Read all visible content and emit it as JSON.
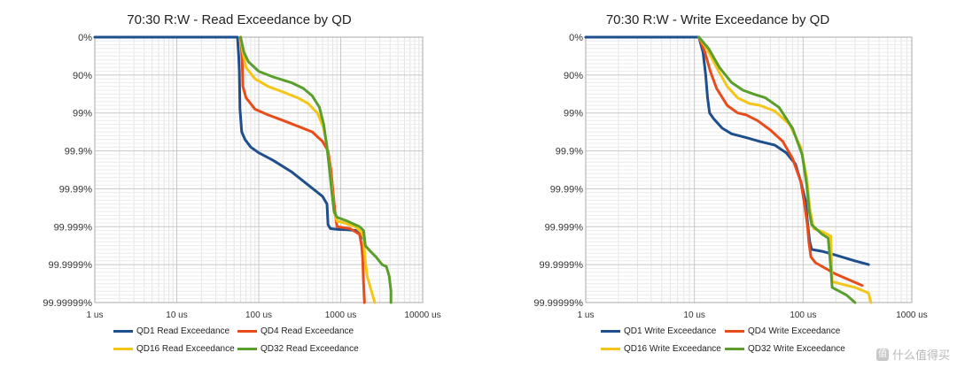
{
  "chart_data": [
    {
      "type": "line",
      "title": "70:30 R:W - Read Exceedance by QD",
      "x_axis": {
        "scale": "log",
        "ticks": [
          "1 us",
          "10 us",
          "100 us",
          "1000 us",
          "10000 us"
        ],
        "range_us": [
          1,
          10000
        ]
      },
      "y_axis": {
        "scale": "exceedance-log",
        "ticks": [
          "0%",
          "90%",
          "99%",
          "99.9%",
          "99.99%",
          "99.999%",
          "99.9999%",
          "99.99999%"
        ]
      },
      "grid": true,
      "legend_position": "bottom",
      "series": [
        {
          "name": "QD1 Read Exceedance",
          "color": "#1f4e8c",
          "points": [
            [
              1,
              0
            ],
            [
              55,
              0
            ],
            [
              57,
              0.5
            ],
            [
              58,
              0.9
            ],
            [
              59,
              1.9
            ],
            [
              62,
              2.5
            ],
            [
              68,
              2.7
            ],
            [
              80,
              2.9
            ],
            [
              100,
              3.05
            ],
            [
              150,
              3.25
            ],
            [
              250,
              3.55
            ],
            [
              400,
              3.9
            ],
            [
              600,
              4.2
            ],
            [
              680,
              4.4
            ],
            [
              700,
              4.95
            ],
            [
              750,
              5.05
            ],
            [
              900,
              5.07
            ],
            [
              1200,
              5.08
            ],
            [
              1600,
              5.1
            ],
            [
              1800,
              5.3
            ]
          ]
        },
        {
          "name": "QD4 Read Exceedance",
          "color": "#e84c1a",
          "points": [
            [
              60,
              0
            ],
            [
              62,
              0.4
            ],
            [
              63,
              0.7
            ],
            [
              64,
              1.3
            ],
            [
              70,
              1.6
            ],
            [
              90,
              1.9
            ],
            [
              130,
              2.05
            ],
            [
              200,
              2.2
            ],
            [
              300,
              2.35
            ],
            [
              450,
              2.5
            ],
            [
              600,
              2.75
            ],
            [
              700,
              3.0
            ],
            [
              760,
              3.5
            ],
            [
              800,
              4.0
            ],
            [
              850,
              4.6
            ],
            [
              900,
              5.0
            ],
            [
              1300,
              5.05
            ],
            [
              1700,
              5.2
            ],
            [
              1800,
              5.5
            ],
            [
              1850,
              5.8
            ],
            [
              1900,
              6.5
            ],
            [
              1950,
              7.0
            ]
          ]
        },
        {
          "name": "QD16 Read Exceedance",
          "color": "#f5c518",
          "points": [
            [
              60,
              0
            ],
            [
              64,
              0.4
            ],
            [
              70,
              0.8
            ],
            [
              90,
              1.1
            ],
            [
              130,
              1.3
            ],
            [
              200,
              1.45
            ],
            [
              300,
              1.6
            ],
            [
              400,
              1.75
            ],
            [
              520,
              2.0
            ],
            [
              620,
              2.4
            ],
            [
              680,
              2.9
            ],
            [
              730,
              3.4
            ],
            [
              780,
              4.0
            ],
            [
              830,
              4.6
            ],
            [
              900,
              4.85
            ],
            [
              1100,
              4.9
            ],
            [
              1500,
              5.0
            ],
            [
              1800,
              5.15
            ],
            [
              1900,
              5.3
            ],
            [
              2000,
              5.9
            ],
            [
              2100,
              6.3
            ],
            [
              2300,
              6.6
            ],
            [
              2600,
              7.0
            ]
          ]
        },
        {
          "name": "QD32 Read Exceedance",
          "color": "#5a9e2c",
          "points": [
            [
              60,
              0
            ],
            [
              66,
              0.4
            ],
            [
              75,
              0.65
            ],
            [
              100,
              0.9
            ],
            [
              150,
              1.05
            ],
            [
              250,
              1.2
            ],
            [
              350,
              1.35
            ],
            [
              450,
              1.55
            ],
            [
              550,
              1.85
            ],
            [
              620,
              2.3
            ],
            [
              680,
              2.9
            ],
            [
              730,
              3.5
            ],
            [
              780,
              4.1
            ],
            [
              830,
              4.6
            ],
            [
              900,
              4.75
            ],
            [
              1200,
              4.85
            ],
            [
              1700,
              5.0
            ],
            [
              1900,
              5.1
            ],
            [
              2000,
              5.5
            ],
            [
              2300,
              5.65
            ],
            [
              2700,
              5.8
            ],
            [
              3200,
              6.0
            ],
            [
              3600,
              6.05
            ],
            [
              3900,
              6.3
            ],
            [
              4100,
              6.7
            ],
            [
              4100,
              7.0
            ]
          ]
        }
      ]
    },
    {
      "type": "line",
      "title": "70:30 R:W - Write Exceedance by QD",
      "x_axis": {
        "scale": "log",
        "ticks": [
          "1 us",
          "10 us",
          "100 us",
          "1000 us"
        ],
        "range_us": [
          1,
          1000
        ]
      },
      "y_axis": {
        "scale": "exceedance-log",
        "ticks": [
          "0%",
          "90%",
          "99%",
          "99.9%",
          "99.99%",
          "99.999%",
          "99.9999%",
          "99.99999%"
        ]
      },
      "grid": true,
      "legend_position": "bottom",
      "series": [
        {
          "name": "QD1 Write Exceedance",
          "color": "#1f4e8c",
          "points": [
            [
              1,
              0
            ],
            [
              11,
              0
            ],
            [
              12,
              0.4
            ],
            [
              12.7,
              1.0
            ],
            [
              13.2,
              1.6
            ],
            [
              13.8,
              2.0
            ],
            [
              15,
              2.15
            ],
            [
              18,
              2.4
            ],
            [
              22,
              2.55
            ],
            [
              30,
              2.65
            ],
            [
              40,
              2.75
            ],
            [
              55,
              2.85
            ],
            [
              70,
              3.05
            ],
            [
              85,
              3.35
            ],
            [
              95,
              3.8
            ],
            [
              105,
              4.3
            ],
            [
              110,
              4.9
            ],
            [
              115,
              5.4
            ],
            [
              120,
              5.6
            ],
            [
              150,
              5.65
            ],
            [
              200,
              5.75
            ],
            [
              300,
              5.9
            ],
            [
              400,
              6.0
            ]
          ]
        },
        {
          "name": "QD4 Write Exceedance",
          "color": "#e84c1a",
          "points": [
            [
              11,
              0
            ],
            [
              12.5,
              0.4
            ],
            [
              14,
              0.9
            ],
            [
              16,
              1.35
            ],
            [
              20,
              1.8
            ],
            [
              25,
              2.0
            ],
            [
              30,
              2.05
            ],
            [
              38,
              2.2
            ],
            [
              50,
              2.45
            ],
            [
              65,
              2.75
            ],
            [
              80,
              3.2
            ],
            [
              95,
              3.8
            ],
            [
              103,
              4.4
            ],
            [
              110,
              5.0
            ],
            [
              113,
              5.4
            ],
            [
              118,
              5.8
            ],
            [
              130,
              5.95
            ],
            [
              200,
              6.25
            ],
            [
              350,
              6.55
            ]
          ]
        },
        {
          "name": "QD16 Write Exceedance",
          "color": "#f5c518",
          "points": [
            [
              11,
              0
            ],
            [
              13,
              0.3
            ],
            [
              16,
              0.8
            ],
            [
              20,
              1.3
            ],
            [
              25,
              1.6
            ],
            [
              32,
              1.75
            ],
            [
              40,
              1.8
            ],
            [
              55,
              1.95
            ],
            [
              75,
              2.3
            ],
            [
              95,
              2.9
            ],
            [
              108,
              3.7
            ],
            [
              115,
              4.5
            ],
            [
              125,
              5.05
            ],
            [
              155,
              5.15
            ],
            [
              180,
              5.25
            ],
            [
              185,
              6.45
            ],
            [
              300,
              6.6
            ],
            [
              400,
              6.75
            ],
            [
              420,
              7.0
            ]
          ]
        },
        {
          "name": "QD32 Write Exceedance",
          "color": "#5a9e2c",
          "points": [
            [
              11,
              0
            ],
            [
              13.5,
              0.3
            ],
            [
              17,
              0.8
            ],
            [
              22,
              1.2
            ],
            [
              28,
              1.4
            ],
            [
              35,
              1.5
            ],
            [
              45,
              1.6
            ],
            [
              60,
              1.85
            ],
            [
              80,
              2.4
            ],
            [
              98,
              3.1
            ],
            [
              108,
              3.9
            ],
            [
              114,
              4.6
            ],
            [
              120,
              4.95
            ],
            [
              150,
              5.2
            ],
            [
              170,
              5.3
            ],
            [
              180,
              6.1
            ],
            [
              185,
              6.6
            ],
            [
              250,
              6.8
            ],
            [
              300,
              7.0
            ]
          ]
        }
      ]
    }
  ],
  "watermark": {
    "text": "什么值得买",
    "badge": "值"
  }
}
